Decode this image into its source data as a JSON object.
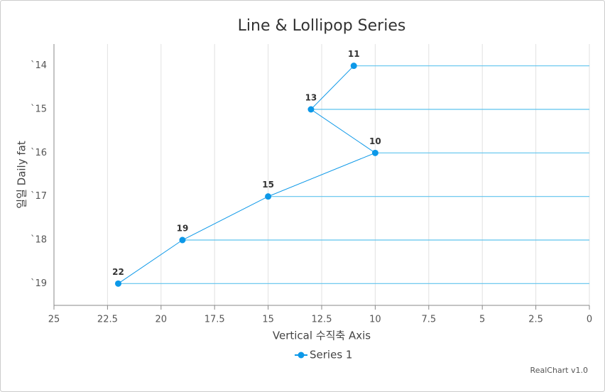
{
  "chart_data": {
    "type": "line-lollipop",
    "title": "Line & Lollipop Series",
    "categories": [
      "`14",
      "`15",
      "`16",
      "`17",
      "`18",
      "`19"
    ],
    "series": [
      {
        "name": "Series 1",
        "color": "#0c98e8",
        "stem_color": "#5ec3ee",
        "values": [
          11,
          13,
          10,
          15,
          19,
          22
        ]
      }
    ],
    "xlim": [
      25,
      0
    ],
    "xticks": [
      25,
      22.5,
      20,
      17.5,
      15,
      12.5,
      10,
      7.5,
      5,
      2.5,
      0
    ],
    "x_axis_label": "Vertical 수직축 Axis",
    "y_axis_label": "일일 Daily fat",
    "grid": true,
    "legend": "bottom",
    "credit": "RealChart v1.0"
  }
}
